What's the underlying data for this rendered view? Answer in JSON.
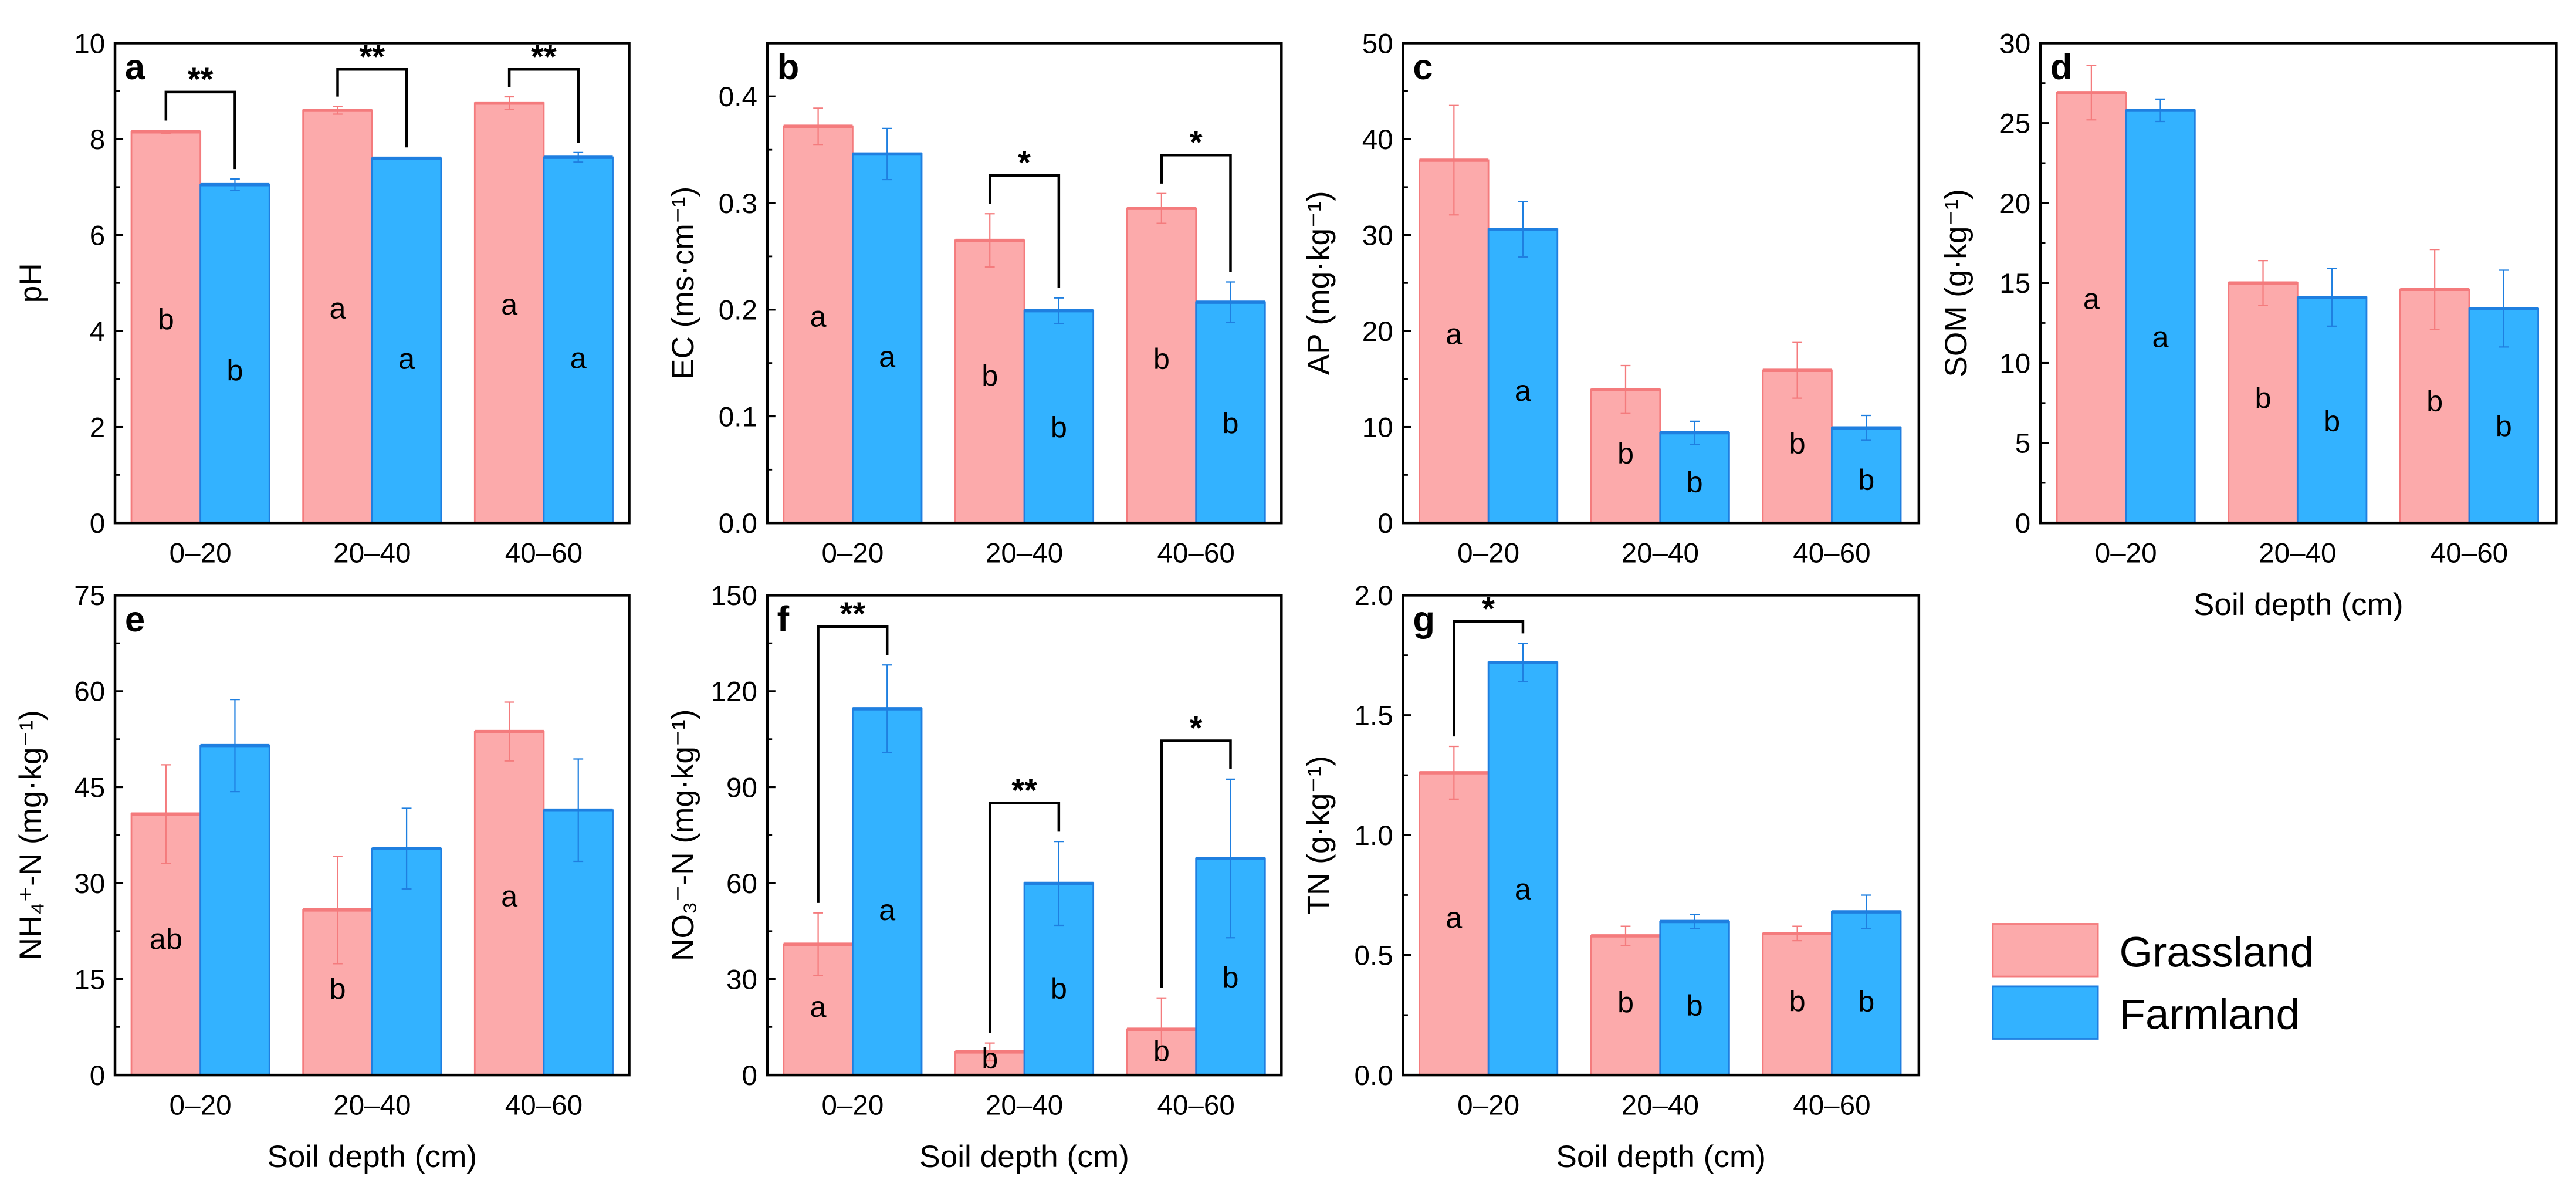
{
  "colors": {
    "grassland": "#fcaaab",
    "grassland_edge": "#f47b7d",
    "farmland": "#33b2ff",
    "farmland_edge": "#1f7fe0",
    "axis": "#000000"
  },
  "legend": {
    "items": [
      {
        "label": "Grassland",
        "key": "grassland"
      },
      {
        "label": "Farmland",
        "key": "farmland"
      }
    ],
    "placement": "bottom-right"
  },
  "chart_data": [
    {
      "panel": "a",
      "type": "bar",
      "title": "",
      "ylabel": "pH",
      "xlabel": "",
      "categories": [
        "0–20",
        "20–40",
        "40–60"
      ],
      "ylim": [
        0,
        10
      ],
      "yticks": [
        "0",
        "2",
        "4",
        "6",
        "8",
        "10"
      ],
      "series": [
        {
          "name": "Grassland",
          "values": [
            8.15,
            8.6,
            8.75
          ],
          "errors": [
            0.03,
            0.08,
            0.13
          ],
          "letters": [
            "b",
            "a",
            "a"
          ]
        },
        {
          "name": "Farmland",
          "values": [
            7.05,
            7.6,
            7.62
          ],
          "errors": [
            0.12,
            0.02,
            0.1
          ],
          "letters": [
            "b",
            "a",
            "a"
          ]
        }
      ],
      "significance": [
        "**",
        "**",
        "**"
      ]
    },
    {
      "panel": "b",
      "type": "bar",
      "title": "",
      "ylabel": "EC (ms·cm⁻¹)",
      "xlabel": "",
      "categories": [
        "0–20",
        "20–40",
        "40–60"
      ],
      "ylim": [
        0,
        0.45
      ],
      "yticks": [
        "0.0",
        "0.1",
        "0.2",
        "0.3",
        "0.4"
      ],
      "series": [
        {
          "name": "Grassland",
          "values": [
            0.372,
            0.265,
            0.295
          ],
          "errors": [
            0.017,
            0.025,
            0.014
          ],
          "letters": [
            "a",
            "b",
            "b"
          ]
        },
        {
          "name": "Farmland",
          "values": [
            0.346,
            0.199,
            0.207
          ],
          "errors": [
            0.024,
            0.012,
            0.019
          ],
          "letters": [
            "a",
            "b",
            "b"
          ]
        }
      ],
      "significance": [
        "",
        "*",
        "*"
      ]
    },
    {
      "panel": "c",
      "type": "bar",
      "title": "",
      "ylabel": "AP (mg·kg⁻¹)",
      "xlabel": "",
      "categories": [
        "0–20",
        "20–40",
        "40–60"
      ],
      "ylim": [
        0,
        50
      ],
      "yticks": [
        "0",
        "10",
        "20",
        "30",
        "40",
        "50"
      ],
      "series": [
        {
          "name": "Grassland",
          "values": [
            37.8,
            13.9,
            15.9
          ],
          "errors": [
            5.7,
            2.5,
            2.9
          ],
          "letters": [
            "a",
            "b",
            "b"
          ]
        },
        {
          "name": "Farmland",
          "values": [
            30.6,
            9.4,
            9.9
          ],
          "errors": [
            2.9,
            1.2,
            1.3
          ],
          "letters": [
            "a",
            "b",
            "b"
          ]
        }
      ],
      "significance": [
        "",
        "",
        ""
      ]
    },
    {
      "panel": "d",
      "type": "bar",
      "title": "",
      "ylabel": "SOM (g·kg⁻¹)",
      "xlabel": "Soil depth (cm)",
      "categories": [
        "0–20",
        "20–40",
        "40–60"
      ],
      "ylim": [
        0,
        30
      ],
      "yticks": [
        "0",
        "5",
        "10",
        "15",
        "20",
        "25",
        "30"
      ],
      "series": [
        {
          "name": "Grassland",
          "values": [
            26.9,
            15.0,
            14.6
          ],
          "errors": [
            1.7,
            1.4,
            2.5
          ],
          "letters": [
            "a",
            "b",
            "b"
          ]
        },
        {
          "name": "Farmland",
          "values": [
            25.8,
            14.1,
            13.4
          ],
          "errors": [
            0.7,
            1.8,
            2.4
          ],
          "letters": [
            "a",
            "b",
            "b"
          ]
        }
      ],
      "significance": [
        "",
        "",
        ""
      ]
    },
    {
      "panel": "e",
      "type": "bar",
      "title": "",
      "ylabel": "NH₄⁺-N (mg·kg⁻¹)",
      "xlabel": "Soil depth (cm)",
      "categories": [
        "0–20",
        "20–40",
        "40–60"
      ],
      "ylim": [
        0,
        75
      ],
      "yticks": [
        "0",
        "15",
        "30",
        "45",
        "60",
        "75"
      ],
      "series": [
        {
          "name": "Grassland",
          "values": [
            40.8,
            25.8,
            53.7
          ],
          "errors": [
            7.7,
            8.4,
            4.6
          ],
          "letters": [
            "ab",
            "b",
            "a"
          ]
        },
        {
          "name": "Farmland",
          "values": [
            51.5,
            35.4,
            41.4
          ],
          "errors": [
            7.2,
            6.3,
            8.0
          ],
          "letters": [
            "",
            "",
            ""
          ]
        }
      ],
      "significance": [
        "",
        "",
        ""
      ]
    },
    {
      "panel": "f",
      "type": "bar",
      "title": "",
      "ylabel": "NO₃⁻-N (mg·kg⁻¹)",
      "xlabel": "Soil depth (cm)",
      "categories": [
        "0–20",
        "20–40",
        "40–60"
      ],
      "ylim": [
        0,
        150
      ],
      "yticks": [
        "0",
        "30",
        "60",
        "90",
        "120",
        "150"
      ],
      "series": [
        {
          "name": "Grassland",
          "values": [
            40.9,
            7.2,
            14.3
          ],
          "errors": [
            9.8,
            2.8,
            9.8
          ],
          "letters": [
            "a",
            "b",
            "b"
          ]
        },
        {
          "name": "Farmland",
          "values": [
            114.5,
            59.9,
            67.7
          ],
          "errors": [
            13.7,
            13.1,
            24.8
          ],
          "letters": [
            "a",
            "b",
            "b"
          ]
        }
      ],
      "significance": [
        "**",
        "**",
        "*"
      ]
    },
    {
      "panel": "g",
      "type": "bar",
      "title": "",
      "ylabel": "TN (g·kg⁻¹)",
      "xlabel": "Soil depth (cm)",
      "categories": [
        "0–20",
        "20–40",
        "40–60"
      ],
      "ylim": [
        0,
        2.0
      ],
      "yticks": [
        "0.0",
        "0.5",
        "1.0",
        "1.5",
        "2.0"
      ],
      "series": [
        {
          "name": "Grassland",
          "values": [
            1.26,
            0.58,
            0.59
          ],
          "errors": [
            0.11,
            0.04,
            0.03
          ],
          "letters": [
            "a",
            "b",
            "b"
          ]
        },
        {
          "name": "Farmland",
          "values": [
            1.72,
            0.64,
            0.68
          ],
          "errors": [
            0.08,
            0.03,
            0.07
          ],
          "letters": [
            "a",
            "b",
            "b"
          ]
        }
      ],
      "significance": [
        "*",
        "",
        ""
      ]
    }
  ]
}
